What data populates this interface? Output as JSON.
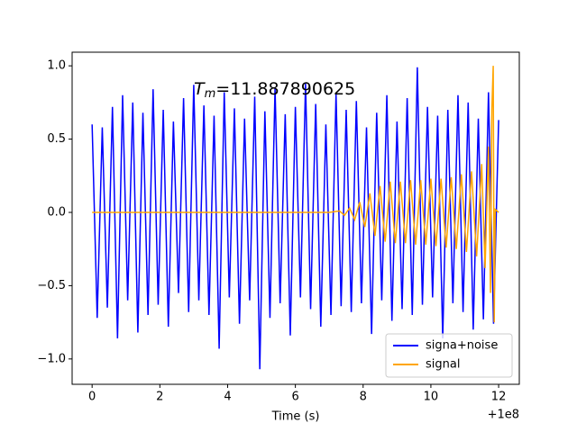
{
  "chart_data": {
    "type": "line",
    "xlabel": "Time (s)",
    "x_offset_label": "+1e8",
    "annotation": {
      "symbol": "T",
      "subscript": "m",
      "text": "=11.887890625"
    },
    "xlim": [
      -0.59,
      12.61
    ],
    "xticks": [
      0,
      2,
      4,
      6,
      8,
      10,
      12
    ],
    "ylim": [
      -1.173,
      1.093
    ],
    "yticks": [
      {
        "value": -1,
        "label": "−1.0"
      },
      {
        "value": -0.5,
        "label": "−0.5"
      },
      {
        "value": 0,
        "label": "0.0"
      },
      {
        "value": 0.5,
        "label": "0.5"
      },
      {
        "value": 1,
        "label": "1.0"
      }
    ],
    "legend": "lower right",
    "series": [
      {
        "name": "signa+noise",
        "color": "#0000ff",
        "x": [
          0,
          0.15,
          0.3,
          0.45,
          0.6,
          0.75,
          0.9,
          1.05,
          1.2,
          1.35,
          1.5,
          1.65,
          1.8,
          1.95,
          2.1,
          2.25,
          2.4,
          2.55,
          2.7,
          2.85,
          3,
          3.15,
          3.3,
          3.45,
          3.6,
          3.75,
          3.9,
          4.05,
          4.2,
          4.35,
          4.5,
          4.65,
          4.8,
          4.95,
          5.1,
          5.25,
          5.4,
          5.55,
          5.7,
          5.85,
          6,
          6.15,
          6.3,
          6.45,
          6.6,
          6.75,
          6.9,
          7.05,
          7.2,
          7.35,
          7.5,
          7.65,
          7.8,
          7.95,
          8.1,
          8.25,
          8.4,
          8.55,
          8.7,
          8.85,
          9,
          9.15,
          9.3,
          9.45,
          9.6,
          9.75,
          9.9,
          10.05,
          10.2,
          10.35,
          10.5,
          10.65,
          10.8,
          10.95,
          11.1,
          11.25,
          11.4,
          11.55,
          11.7,
          11.85,
          12
        ],
        "values": [
          0.6,
          -0.72,
          0.58,
          -0.65,
          0.72,
          -0.86,
          0.8,
          -0.6,
          0.75,
          -0.82,
          0.68,
          -0.7,
          0.84,
          -0.63,
          0.7,
          -0.78,
          0.62,
          -0.55,
          0.78,
          -0.68,
          0.87,
          -0.6,
          0.73,
          -0.7,
          0.66,
          -0.93,
          0.82,
          -0.58,
          0.71,
          -0.76,
          0.64,
          -0.6,
          0.79,
          -1.07,
          0.69,
          -0.72,
          0.85,
          -0.62,
          0.67,
          -0.84,
          0.72,
          -0.58,
          0.88,
          -0.66,
          0.74,
          -0.78,
          0.6,
          -0.7,
          0.81,
          -0.64,
          0.7,
          -0.68,
          0.76,
          -0.62,
          0.58,
          -0.83,
          0.68,
          -0.6,
          0.8,
          -0.74,
          0.62,
          -0.66,
          0.78,
          -0.7,
          0.99,
          -0.63,
          0.72,
          -0.58,
          0.66,
          -0.86,
          0.7,
          -0.62,
          0.8,
          -0.68,
          0.75,
          -0.8,
          0.64,
          -0.73,
          0.82,
          -0.76,
          0.63
        ]
      },
      {
        "name": "signal",
        "color": "#ffa500",
        "x": [
          0,
          7,
          7.3,
          7.45,
          7.6,
          7.75,
          7.9,
          8.05,
          8.2,
          8.35,
          8.5,
          8.65,
          8.8,
          8.95,
          9.1,
          9.25,
          9.4,
          9.55,
          9.7,
          9.85,
          10,
          10.15,
          10.3,
          10.45,
          10.6,
          10.75,
          10.9,
          11.05,
          11.2,
          11.35,
          11.5,
          11.6,
          11.7,
          11.76,
          11.8,
          11.84,
          11.87,
          11.9,
          12
        ],
        "values": [
          0,
          0,
          0.01,
          -0.02,
          0.03,
          -0.05,
          0.07,
          -0.1,
          0.13,
          -0.16,
          0.18,
          -0.2,
          0.21,
          -0.21,
          0.21,
          -0.21,
          0.22,
          -0.22,
          0.22,
          -0.22,
          0.23,
          -0.23,
          0.23,
          -0.24,
          0.24,
          -0.25,
          0.26,
          -0.27,
          0.28,
          -0.3,
          0.33,
          -0.38,
          0.45,
          -0.55,
          0.7,
          1.0,
          -0.75,
          0.02,
          0
        ]
      }
    ]
  }
}
